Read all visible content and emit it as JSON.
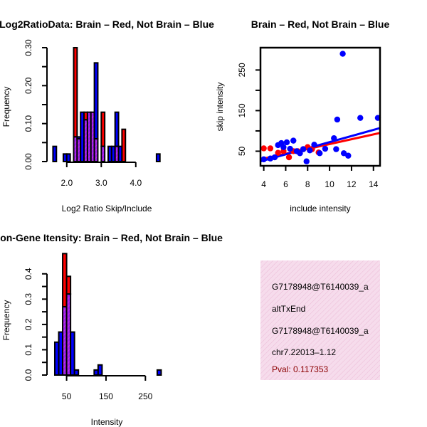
{
  "colors": {
    "red": "#ff0000",
    "blue": "#0000ff",
    "purple": "#a020f0",
    "hatch_bg": "#f6dcec",
    "hatch_line": "#e8a8cc",
    "pval": "#8b0000"
  },
  "chart_data": [
    {
      "type": "bar",
      "subtype": "overlaid-histogram",
      "title": "Log2RatioData: Brain – Red, Not Brain – Blue",
      "xlabel": "Log2 Ratio Skip/Include",
      "ylabel": "Frequency",
      "xlim": [
        1.55,
        4.85
      ],
      "ylim": [
        0,
        0.3
      ],
      "xticks": [
        "2.0",
        "3.0",
        "4.0"
      ],
      "xtick_values": [
        2.0,
        3.0,
        4.0
      ],
      "yticks": [
        "0.00",
        "0.10",
        "0.20",
        "0.30"
      ],
      "ytick_values": [
        0,
        0.1,
        0.2,
        0.3
      ],
      "bin_width": 0.1,
      "series": [
        {
          "name": "Brain",
          "color": "red",
          "bins": [
            [
              2.2,
              0.3
            ],
            [
              2.3,
              0.06
            ],
            [
              2.5,
              0.13
            ],
            [
              2.6,
              0.13
            ],
            [
              2.7,
              0.13
            ],
            [
              2.8,
              0.06
            ],
            [
              3.0,
              0.13
            ],
            [
              3.4,
              0.04
            ],
            [
              3.6,
              0.085
            ]
          ]
        },
        {
          "name": "Not Brain",
          "color": "blue",
          "bins": [
            [
              1.6,
              0.04
            ],
            [
              1.9,
              0.02
            ],
            [
              2.0,
              0.02
            ],
            [
              2.2,
              0.065
            ],
            [
              2.3,
              0.065
            ],
            [
              2.4,
              0.13
            ],
            [
              2.5,
              0.11
            ],
            [
              2.6,
              0.13
            ],
            [
              2.7,
              0.13
            ],
            [
              2.8,
              0.26
            ],
            [
              3.0,
              0.04
            ],
            [
              3.2,
              0.04
            ],
            [
              3.3,
              0.04
            ],
            [
              3.4,
              0.13
            ],
            [
              3.5,
              0.04
            ],
            [
              4.6,
              0.02
            ]
          ]
        }
      ]
    },
    {
      "type": "scatter",
      "title": "Brain – Red, Not Brain – Blue",
      "xlabel": "include intensity",
      "ylabel": "skip intensity",
      "xlim": [
        3.7,
        14.6
      ],
      "ylim": [
        14,
        305
      ],
      "xticks": [
        "4",
        "6",
        "8",
        "10",
        "12",
        "14"
      ],
      "xtick_values": [
        4,
        6,
        8,
        10,
        12,
        14
      ],
      "yticks": [
        "50",
        "150",
        "250"
      ],
      "ytick_values": [
        50,
        150,
        250
      ],
      "series": [
        {
          "name": "Brain",
          "color": "red",
          "points": [
            [
              4.0,
              57
            ],
            [
              4.6,
              57
            ],
            [
              5.3,
              46
            ],
            [
              5.8,
              50
            ],
            [
              6.3,
              35
            ],
            [
              6.7,
              50
            ],
            [
              7.1,
              50
            ],
            [
              7.6,
              55
            ],
            [
              8.0,
              60
            ],
            [
              8.4,
              55
            ],
            [
              9.0,
              47
            ]
          ],
          "fit": [
            [
              3.7,
              30
            ],
            [
              14.6,
              95
            ]
          ]
        },
        {
          "name": "Not Brain",
          "color": "blue",
          "points": [
            [
              4.0,
              30
            ],
            [
              4.6,
              32
            ],
            [
              5.0,
              35
            ],
            [
              5.3,
              65
            ],
            [
              5.6,
              70
            ],
            [
              5.8,
              60
            ],
            [
              6.1,
              72
            ],
            [
              6.4,
              56
            ],
            [
              6.7,
              76
            ],
            [
              7.0,
              50
            ],
            [
              7.3,
              45
            ],
            [
              7.6,
              55
            ],
            [
              7.9,
              25
            ],
            [
              8.2,
              52
            ],
            [
              8.6,
              66
            ],
            [
              9.1,
              45
            ],
            [
              9.6,
              56
            ],
            [
              10.4,
              82
            ],
            [
              10.6,
              55
            ],
            [
              10.7,
              128
            ],
            [
              11.2,
              290
            ],
            [
              11.3,
              45
            ],
            [
              11.7,
              39
            ],
            [
              12.8,
              132
            ],
            [
              14.4,
              132
            ]
          ],
          "fit": [
            [
              3.7,
              25
            ],
            [
              14.6,
              107
            ]
          ]
        }
      ]
    },
    {
      "type": "bar",
      "subtype": "overlaid-histogram",
      "title": "Exon-Gene Itensity: Brain – Red, Not Brain – Blue",
      "xlabel": "Intensity",
      "ylabel": "Frequency",
      "xlim": [
        11,
        300
      ],
      "ylim": [
        0,
        0.45
      ],
      "xticks": [
        "50",
        "150",
        "250"
      ],
      "xtick_values": [
        50,
        150,
        250
      ],
      "yticks": [
        "0.0",
        "0.1",
        "0.2",
        "0.3",
        "0.4"
      ],
      "ytick_values": [
        0,
        0.1,
        0.2,
        0.3,
        0.4
      ],
      "bin_width": 10,
      "series": [
        {
          "name": "Brain",
          "color": "red",
          "bins": [
            [
              40,
              0.48
            ],
            [
              50,
              0.39
            ]
          ]
        },
        {
          "name": "Not Brain",
          "color": "blue",
          "bins": [
            [
              20,
              0.13
            ],
            [
              30,
              0.17
            ],
            [
              40,
              0.27
            ],
            [
              50,
              0.32
            ],
            [
              60,
              0.17
            ],
            [
              70,
              0.02
            ],
            [
              120,
              0.02
            ],
            [
              130,
              0.04
            ],
            [
              280,
              0.02
            ]
          ]
        }
      ]
    }
  ],
  "info_panel": {
    "lines": [
      "G7178948@T6140039_a",
      "altTxEnd",
      "G7178948@T6140039_a",
      "chr7.22013–1.12"
    ],
    "pval": "Pval: 0.117353"
  }
}
